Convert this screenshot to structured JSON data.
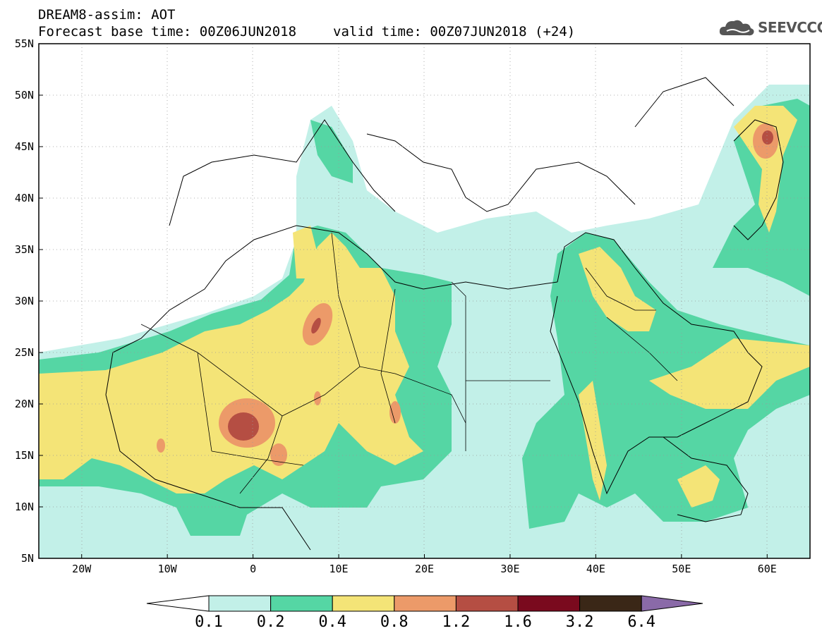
{
  "header": {
    "line1": "DREAM8-assim: AOT",
    "base_time": "Forecast base time: 00Z06JUN2018",
    "valid_time": "valid time: 00Z07JUN2018 (+24)"
  },
  "logo": {
    "text": "SEEVCCC",
    "icon": "cloud-logo-icon",
    "color": "#555555"
  },
  "map": {
    "lon_range": [
      -25,
      65
    ],
    "lat_range": [
      5,
      55
    ],
    "lon_ticks": [
      "20W",
      "10W",
      "0",
      "10E",
      "20E",
      "30E",
      "40E",
      "50E",
      "60E"
    ],
    "lat_ticks": [
      "5N",
      "10N",
      "15N",
      "20N",
      "25N",
      "30N",
      "35N",
      "40N",
      "45N",
      "50N",
      "55N"
    ]
  },
  "colorbar": {
    "labels": [
      "0.1",
      "0.2",
      "0.4",
      "0.8",
      "1.2",
      "1.6",
      "3.2",
      "6.4"
    ],
    "colors": [
      "#c2f0e8",
      "#55d6a4",
      "#f4e477",
      "#ec9a69",
      "#b54e43",
      "#7a0a1e",
      "#3a2717",
      "#8a6aa8"
    ]
  }
}
